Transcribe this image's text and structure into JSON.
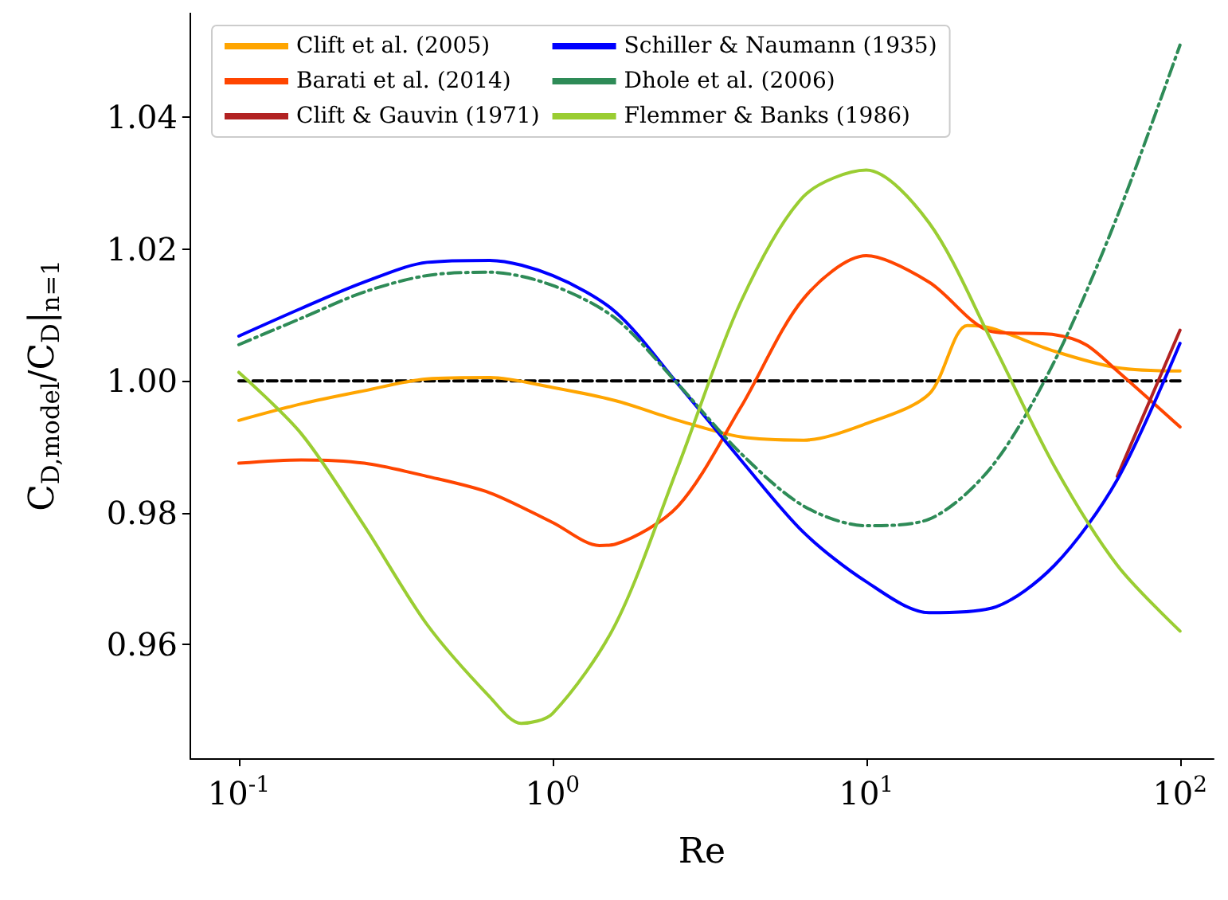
{
  "chart_data": {
    "type": "line",
    "xlabel": "Re",
    "ylabel": "C$_{D,model}$/C$_{D}$|$_{n=1}$",
    "log": "x",
    "xlim": [
      0.07,
      128
    ],
    "ylim": [
      0.9427,
      1.0559
    ],
    "xticks": [
      {
        "value": 0.1,
        "label": "10$^{-1}$"
      },
      {
        "value": 1,
        "label": "10$^{0}$"
      },
      {
        "value": 10,
        "label": "10$^{1}$"
      },
      {
        "value": 100,
        "label": "10$^{2}$"
      }
    ],
    "yticks": [
      {
        "value": 0.96,
        "label": "0.96"
      },
      {
        "value": 0.98,
        "label": "0.98"
      },
      {
        "value": 1,
        "label": "1.00"
      },
      {
        "value": 1.02,
        "label": "1.02"
      },
      {
        "value": 1.04,
        "label": "1.04"
      }
    ],
    "grid": false,
    "legend": "top left",
    "marker": "none",
    "series": [
      {
        "color": "#000000",
        "line_style": "dashed",
        "x": [
          0.1,
          100
        ],
        "values": [
          1,
          1
        ]
      },
      {
        "name": "Clift et al. (2005)",
        "color": "#ffa500",
        "line_style": "solid",
        "x": [
          0.1,
          0.158,
          0.251,
          0.398,
          0.631,
          1,
          1.585,
          2.512,
          3.981,
          6.31,
          10,
          15.85,
          21,
          25.12,
          39.81,
          63.1,
          100
        ],
        "values": [
          0.994,
          0.9965,
          0.9985,
          1.0003,
          1.0005,
          0.999,
          0.997,
          0.994,
          0.9915,
          0.991,
          0.9935,
          0.998,
          1.0084,
          1.008,
          1.0045,
          1.002,
          1.0015
        ]
      },
      {
        "name": "Barati et al. (2014)",
        "color": "#ff4500",
        "line_style": "solid",
        "x": [
          0.1,
          0.158,
          0.251,
          0.398,
          0.631,
          1,
          1.41,
          1.585,
          2.512,
          3.981,
          6.31,
          10,
          15.85,
          25.12,
          39.81,
          50.1,
          63.1,
          100
        ],
        "values": [
          0.9875,
          0.988,
          0.9875,
          0.9855,
          0.983,
          0.9785,
          0.975,
          0.9752,
          0.981,
          0.996,
          1.0125,
          1.019,
          1.015,
          1.0075,
          1.007,
          1.0055,
          1.0015,
          0.993
        ]
      },
      {
        "name": "Clift & Gauvin (1971)",
        "color": "#b22222",
        "line_style": "solid",
        "x": [
          63.1,
          100
        ],
        "values": [
          0.9855,
          1.0077
        ]
      },
      {
        "name": "Schiller & Naumann (1935)",
        "color": "#0000ff",
        "line_style": "solid",
        "x": [
          0.1,
          0.158,
          0.251,
          0.398,
          0.631,
          1,
          1.585,
          2.512,
          3.981,
          6.31,
          10,
          15.85,
          25.12,
          39.81,
          63.1,
          100
        ],
        "values": [
          1.0068,
          1.011,
          1.015,
          1.018,
          1.0183,
          1.016,
          1.0105,
          0.9995,
          0.988,
          0.977,
          0.9695,
          0.9648,
          0.9655,
          0.972,
          0.985,
          1.0057
        ]
      },
      {
        "name": "Dhole et al. (2006)",
        "color": "#2e8b57",
        "line_style": "dashdot",
        "x": [
          0.1,
          0.158,
          0.251,
          0.398,
          0.631,
          1,
          1.585,
          2.512,
          3.981,
          6.31,
          10,
          15.85,
          25.12,
          39.81,
          63.1,
          100
        ],
        "values": [
          1.0055,
          1.0095,
          1.0135,
          1.016,
          1.0165,
          1.0145,
          1.0095,
          0.9995,
          0.989,
          0.981,
          0.978,
          0.979,
          0.987,
          1.003,
          1.025,
          1.051
        ]
      },
      {
        "name": "Flemmer & Banks (1986)",
        "color": "#9acd32",
        "line_style": "solid",
        "x": [
          0.1,
          0.158,
          0.251,
          0.398,
          0.631,
          0.794,
          1,
          1.585,
          2.512,
          3.981,
          6.31,
          10,
          15.85,
          25.12,
          39.81,
          63.1,
          100
        ],
        "values": [
          1.0013,
          0.992,
          0.978,
          0.963,
          0.952,
          0.948,
          0.9495,
          0.963,
          0.987,
          1.012,
          1.028,
          1.032,
          1.024,
          1.006,
          0.987,
          0.972,
          0.962
        ]
      }
    ]
  }
}
